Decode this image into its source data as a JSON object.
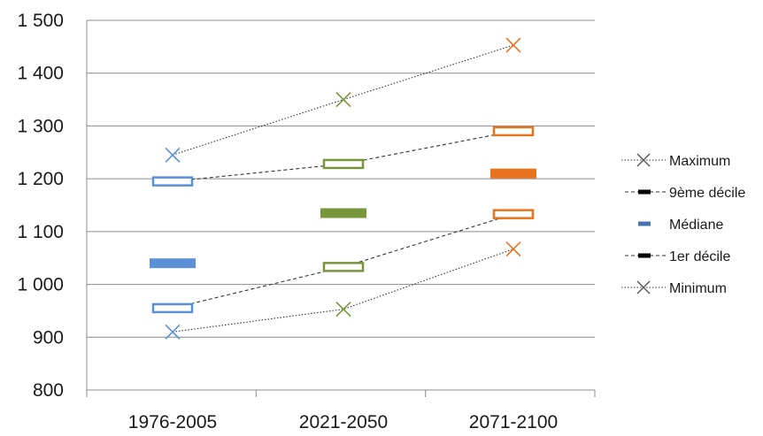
{
  "chart_data": {
    "type": "line",
    "categories": [
      "1976-2005",
      "2021-2050",
      "2071-2100"
    ],
    "ylim": [
      800,
      1500
    ],
    "yticks": [
      800,
      900,
      1000,
      1100,
      1200,
      1300,
      1400,
      1500
    ],
    "ytick_labels": [
      "800",
      "900",
      "1 000",
      "1 100",
      "1 200",
      "1 300",
      "1 400",
      "1 500"
    ],
    "grid": true,
    "legend_position": "right",
    "category_colors": [
      "#5B8FD6",
      "#78963A",
      "#E8731C"
    ],
    "series": [
      {
        "name": "Maximum",
        "values": [
          1245,
          1350,
          1453
        ],
        "marker": "x",
        "line": "dotted"
      },
      {
        "name": "9ème décile",
        "values": [
          1195,
          1228,
          1290
        ],
        "marker": "hollow-bar",
        "line": "dashed"
      },
      {
        "name": "Médiane",
        "values": [
          1040,
          1135,
          1210
        ],
        "marker": "filled-bar",
        "line": "none"
      },
      {
        "name": "1er décile",
        "values": [
          955,
          1033,
          1133
        ],
        "marker": "hollow-bar",
        "line": "dashed"
      },
      {
        "name": "Minimum",
        "values": [
          910,
          953,
          1067
        ],
        "marker": "x",
        "line": "dotted"
      }
    ]
  }
}
